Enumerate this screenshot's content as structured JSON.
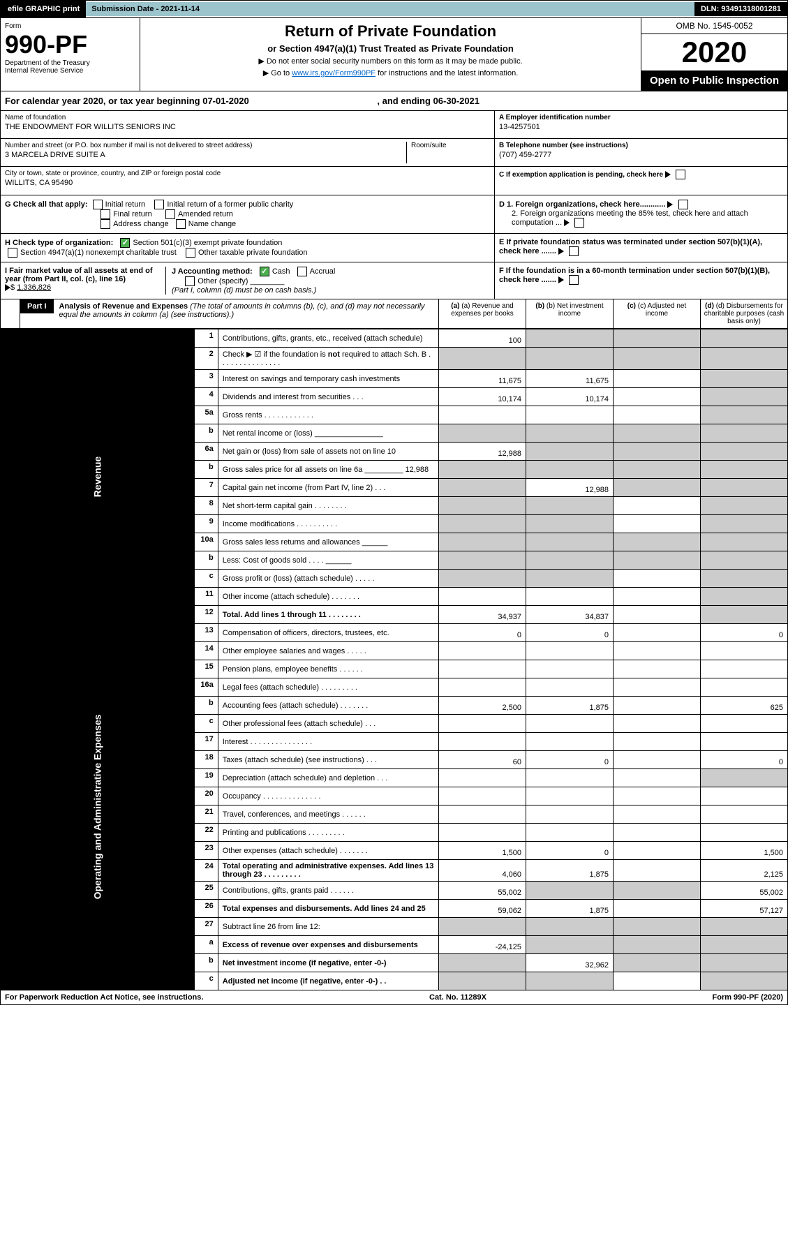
{
  "top": {
    "efile": "efile GRAPHIC print",
    "submission_label": "Submission Date - 2021-11-14",
    "dln": "DLN: 93491318001281"
  },
  "header": {
    "form_word": "Form",
    "form_number": "990-PF",
    "dept": "Department of the Treasury",
    "irs": "Internal Revenue Service",
    "title": "Return of Private Foundation",
    "subtitle": "or Section 4947(a)(1) Trust Treated as Private Foundation",
    "note1": "▶ Do not enter social security numbers on this form as it may be made public.",
    "note2_pre": "▶ Go to ",
    "note2_link": "www.irs.gov/Form990PF",
    "note2_post": " for instructions and the latest information.",
    "omb": "OMB No. 1545-0052",
    "year": "2020",
    "open": "Open to Public Inspection"
  },
  "cal_year": {
    "pre": "For calendar year 2020, or tax year beginning 07-01-2020",
    "mid": ", and ending 06-30-2021"
  },
  "foundation": {
    "name_label": "Name of foundation",
    "name": "THE ENDOWMENT FOR WILLITS SENIORS INC",
    "street_label": "Number and street (or P.O. box number if mail is not delivered to street address)",
    "street": "3 MARCELA DRIVE SUITE A",
    "room_label": "Room/suite",
    "city_label": "City or town, state or province, country, and ZIP or foreign postal code",
    "city": "WILLITS, CA  95490",
    "ein_label": "A Employer identification number",
    "ein": "13-4257501",
    "phone_label": "B Telephone number (see instructions)",
    "phone": "(707) 459-2777",
    "c_label": "C If exemption application is pending, check here"
  },
  "checks": {
    "g_label": "G Check all that apply:",
    "g_opts": [
      "Initial return",
      "Initial return of a former public charity",
      "Final return",
      "Amended return",
      "Address change",
      "Name change"
    ],
    "h_label": "H Check type of organization:",
    "h1": "Section 501(c)(3) exempt private foundation",
    "h2": "Section 4947(a)(1) nonexempt charitable trust",
    "h3": "Other taxable private foundation",
    "i_label": "I Fair market value of all assets at end of year (from Part II, col. (c), line 16)",
    "i_value": "1,336,826",
    "j_label": "J Accounting method:",
    "j_cash": "Cash",
    "j_accrual": "Accrual",
    "j_other": "Other (specify)",
    "j_note": "(Part I, column (d) must be on cash basis.)",
    "d1": "D 1. Foreign organizations, check here............",
    "d2": "2. Foreign organizations meeting the 85% test, check here and attach computation ...",
    "e_label": "E  If private foundation status was terminated under section 507(b)(1)(A), check here .......",
    "f_label": "F  If the foundation is in a 60-month termination under section 507(b)(1)(B), check here ......."
  },
  "part1": {
    "label": "Part I",
    "title": "Analysis of Revenue and Expenses",
    "title_note": "(The total of amounts in columns (b), (c), and (d) may not necessarily equal the amounts in column (a) (see instructions).)",
    "col_a": "(a)   Revenue and expenses per books",
    "col_b": "(b)   Net investment income",
    "col_c": "(c)   Adjusted net income",
    "col_d": "(d)   Disbursements for charitable purposes (cash basis only)"
  },
  "side": {
    "revenue": "Revenue",
    "expenses": "Operating and Administrative Expenses"
  },
  "rows": [
    {
      "n": "1",
      "d": "",
      "a": "100",
      "b": "",
      "c": "",
      "agrey": false,
      "bgrey": true,
      "cgrey": true,
      "dgrey": true
    },
    {
      "n": "2",
      "d": "",
      "a": "",
      "b": "",
      "c": "",
      "agrey": true,
      "bgrey": true,
      "cgrey": true,
      "dgrey": true
    },
    {
      "n": "3",
      "d": "",
      "a": "11,675",
      "b": "11,675",
      "c": "",
      "dgrey": true
    },
    {
      "n": "4",
      "d": "",
      "a": "10,174",
      "b": "10,174",
      "c": "",
      "dgrey": true
    },
    {
      "n": "5a",
      "d": "",
      "a": "",
      "b": "",
      "c": "",
      "dgrey": true
    },
    {
      "n": "b",
      "d": "",
      "a": "",
      "b": "",
      "c": "",
      "agrey": true,
      "bgrey": true,
      "cgrey": true,
      "dgrey": true
    },
    {
      "n": "6a",
      "d": "",
      "a": "12,988",
      "b": "",
      "c": "",
      "bgrey": true,
      "cgrey": true,
      "dgrey": true
    },
    {
      "n": "b",
      "d": "",
      "a": "",
      "b": "",
      "c": "",
      "agrey": true,
      "bgrey": true,
      "cgrey": true,
      "dgrey": true
    },
    {
      "n": "7",
      "d": "",
      "a": "",
      "b": "12,988",
      "c": "",
      "agrey": true,
      "cgrey": true,
      "dgrey": true
    },
    {
      "n": "8",
      "d": "",
      "a": "",
      "b": "",
      "c": "",
      "agrey": true,
      "bgrey": true,
      "dgrey": true
    },
    {
      "n": "9",
      "d": "",
      "a": "",
      "b": "",
      "c": "",
      "agrey": true,
      "bgrey": true,
      "dgrey": true
    },
    {
      "n": "10a",
      "d": "",
      "a": "",
      "b": "",
      "c": "",
      "agrey": true,
      "bgrey": true,
      "cgrey": true,
      "dgrey": true
    },
    {
      "n": "b",
      "d": "",
      "a": "",
      "b": "",
      "c": "",
      "agrey": true,
      "bgrey": true,
      "cgrey": true,
      "dgrey": true
    },
    {
      "n": "c",
      "d": "",
      "a": "",
      "b": "",
      "c": "",
      "agrey": true,
      "bgrey": true,
      "dgrey": true
    },
    {
      "n": "11",
      "d": "",
      "a": "",
      "b": "",
      "c": "",
      "dgrey": true
    },
    {
      "n": "12",
      "d": "",
      "a": "34,937",
      "b": "34,837",
      "c": "",
      "bold": true,
      "dgrey": true
    },
    {
      "n": "13",
      "d": "0",
      "a": "0",
      "b": "0",
      "c": ""
    },
    {
      "n": "14",
      "d": "",
      "a": "",
      "b": "",
      "c": ""
    },
    {
      "n": "15",
      "d": "",
      "a": "",
      "b": "",
      "c": ""
    },
    {
      "n": "16a",
      "d": "",
      "a": "",
      "b": "",
      "c": ""
    },
    {
      "n": "b",
      "d": "625",
      "a": "2,500",
      "b": "1,875",
      "c": ""
    },
    {
      "n": "c",
      "d": "",
      "a": "",
      "b": "",
      "c": ""
    },
    {
      "n": "17",
      "d": "",
      "a": "",
      "b": "",
      "c": ""
    },
    {
      "n": "18",
      "d": "0",
      "a": "60",
      "b": "0",
      "c": ""
    },
    {
      "n": "19",
      "d": "",
      "a": "",
      "b": "",
      "c": "",
      "dgrey": true
    },
    {
      "n": "20",
      "d": "",
      "a": "",
      "b": "",
      "c": ""
    },
    {
      "n": "21",
      "d": "",
      "a": "",
      "b": "",
      "c": ""
    },
    {
      "n": "22",
      "d": "",
      "a": "",
      "b": "",
      "c": ""
    },
    {
      "n": "23",
      "d": "1,500",
      "a": "1,500",
      "b": "0",
      "c": ""
    },
    {
      "n": "24",
      "d": "2,125",
      "a": "4,060",
      "b": "1,875",
      "c": "",
      "bold": true
    },
    {
      "n": "25",
      "d": "55,002",
      "a": "55,002",
      "b": "",
      "c": "",
      "bgrey": true,
      "cgrey": true
    },
    {
      "n": "26",
      "d": "57,127",
      "a": "59,062",
      "b": "1,875",
      "c": "",
      "bold": true
    },
    {
      "n": "27",
      "d": "",
      "a": "",
      "b": "",
      "c": "",
      "agrey": true,
      "bgrey": true,
      "cgrey": true,
      "dgrey": true
    },
    {
      "n": "a",
      "d": "",
      "a": "-24,125",
      "b": "",
      "c": "",
      "bold": true,
      "bgrey": true,
      "cgrey": true,
      "dgrey": true
    },
    {
      "n": "b",
      "d": "",
      "a": "",
      "b": "32,962",
      "c": "",
      "bold": true,
      "agrey": true,
      "cgrey": true,
      "dgrey": true
    },
    {
      "n": "c",
      "d": "",
      "a": "",
      "b": "",
      "c": "",
      "bold": true,
      "agrey": true,
      "bgrey": true,
      "dgrey": true
    }
  ],
  "footer": {
    "left": "For Paperwork Reduction Act Notice, see instructions.",
    "mid": "Cat. No. 11289X",
    "right": "Form 990-PF (2020)"
  }
}
